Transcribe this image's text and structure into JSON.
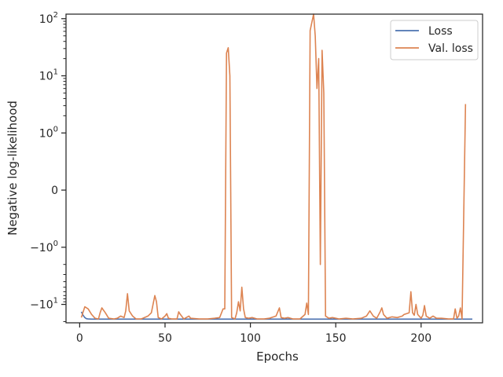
{
  "chart_data": {
    "type": "line",
    "title": "",
    "xlabel": "Epochs",
    "ylabel": "Negative log-likelihood",
    "xlim": [
      -8,
      236
    ],
    "xscale": "linear",
    "yscale": "symlog",
    "ylim": [
      -21,
      120
    ],
    "grid": false,
    "legend_position": "top-right",
    "x_ticks": [
      0,
      50,
      100,
      150,
      200
    ],
    "x_tick_labels": [
      "0",
      "50",
      "100",
      "150",
      "200"
    ],
    "y_ticks": [
      {
        "value": 100,
        "base": "10",
        "exp": "2"
      },
      {
        "value": 10,
        "base": "10",
        "exp": "1"
      },
      {
        "value": 1,
        "base": "10",
        "exp": "0"
      },
      {
        "value": 0,
        "base": "0",
        "exp": ""
      },
      {
        "value": -1,
        "base": "−10",
        "exp": "0"
      },
      {
        "value": -10,
        "base": "−10",
        "exp": "1"
      }
    ],
    "series": [
      {
        "name": "Loss",
        "color": "#4c72b0",
        "points": [
          [
            1,
            -13.5
          ],
          [
            2,
            -15.5
          ],
          [
            3,
            -17
          ],
          [
            4,
            -17.8
          ],
          [
            5,
            -18
          ],
          [
            7,
            -18.1
          ],
          [
            230,
            -18.1
          ]
        ]
      },
      {
        "name": "Val. loss",
        "color": "#dd8452",
        "points": [
          [
            1,
            -17
          ],
          [
            3,
            -11
          ],
          [
            5,
            -12
          ],
          [
            7,
            -15
          ],
          [
            9,
            -17.5
          ],
          [
            11,
            -18
          ],
          [
            12,
            -14
          ],
          [
            13,
            -11.5
          ],
          [
            15,
            -14
          ],
          [
            17,
            -17.5
          ],
          [
            20,
            -18
          ],
          [
            22,
            -17.5
          ],
          [
            24,
            -16
          ],
          [
            26,
            -17
          ],
          [
            27,
            -13
          ],
          [
            28,
            -6.5
          ],
          [
            29,
            -13
          ],
          [
            31,
            -16
          ],
          [
            33,
            -18
          ],
          [
            36,
            -18
          ],
          [
            40,
            -16
          ],
          [
            42,
            -14
          ],
          [
            44,
            -7
          ],
          [
            45,
            -9
          ],
          [
            46,
            -17
          ],
          [
            48,
            -18
          ],
          [
            50,
            -16
          ],
          [
            51,
            -14.5
          ],
          [
            52,
            -17.5
          ],
          [
            54,
            -18
          ],
          [
            57,
            -18
          ],
          [
            58,
            -13.5
          ],
          [
            59,
            -15
          ],
          [
            61,
            -18
          ],
          [
            64,
            -16
          ],
          [
            65,
            -17.5
          ],
          [
            70,
            -18
          ],
          [
            75,
            -18
          ],
          [
            79,
            -17.5
          ],
          [
            82,
            -17
          ],
          [
            84,
            -12
          ],
          [
            85,
            -12
          ],
          [
            86,
            25
          ],
          [
            87,
            31
          ],
          [
            88,
            10
          ],
          [
            89,
            -17
          ],
          [
            91,
            -18
          ],
          [
            92,
            -14
          ],
          [
            93,
            -9
          ],
          [
            94,
            -13
          ],
          [
            95,
            -5
          ],
          [
            96,
            -12
          ],
          [
            97,
            -17
          ],
          [
            99,
            -17.5
          ],
          [
            101,
            -17
          ],
          [
            104,
            -18
          ],
          [
            108,
            -18
          ],
          [
            111,
            -17.5
          ],
          [
            115,
            -16
          ],
          [
            117,
            -11.5
          ],
          [
            118,
            -17
          ],
          [
            120,
            -17.5
          ],
          [
            122,
            -17
          ],
          [
            125,
            -18
          ],
          [
            129,
            -18
          ],
          [
            132,
            -15
          ],
          [
            133,
            -9.5
          ],
          [
            134,
            -15
          ],
          [
            135,
            62
          ],
          [
            137,
            120
          ],
          [
            138,
            50
          ],
          [
            139,
            6
          ],
          [
            140,
            20
          ],
          [
            141,
            -2
          ],
          [
            142,
            28
          ],
          [
            143,
            5
          ],
          [
            144,
            -16
          ],
          [
            146,
            -17.5
          ],
          [
            148,
            -17
          ],
          [
            150,
            -17.5
          ],
          [
            152,
            -18
          ],
          [
            156,
            -17.5
          ],
          [
            160,
            -18
          ],
          [
            165,
            -17.5
          ],
          [
            168,
            -16
          ],
          [
            170,
            -13
          ],
          [
            172,
            -16
          ],
          [
            174,
            -17.5
          ],
          [
            176,
            -13.5
          ],
          [
            177,
            -11.5
          ],
          [
            178,
            -15
          ],
          [
            180,
            -17.5
          ],
          [
            183,
            -16.5
          ],
          [
            186,
            -17
          ],
          [
            189,
            -16
          ],
          [
            190,
            -15
          ],
          [
            193,
            -14
          ],
          [
            194,
            -6
          ],
          [
            195,
            -14
          ],
          [
            196,
            -15.5
          ],
          [
            197,
            -10
          ],
          [
            198,
            -15
          ],
          [
            200,
            -17.5
          ],
          [
            201,
            -15.5
          ],
          [
            202,
            -10.5
          ],
          [
            203,
            -16
          ],
          [
            205,
            -17.5
          ],
          [
            207,
            -16
          ],
          [
            209,
            -17.5
          ],
          [
            212,
            -17.5
          ],
          [
            216,
            -18
          ],
          [
            219,
            -18
          ],
          [
            220,
            -12
          ],
          [
            221,
            -17.5
          ],
          [
            222,
            -16
          ],
          [
            223,
            -11.5
          ],
          [
            224,
            -18
          ],
          [
            226,
            3.2
          ]
        ]
      }
    ]
  }
}
